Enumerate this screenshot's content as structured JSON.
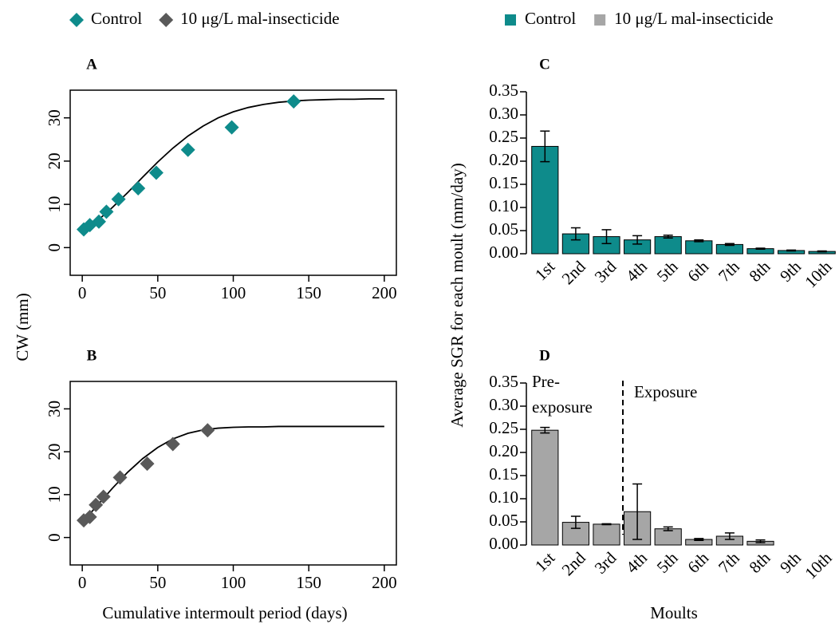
{
  "figure": {
    "left_y_label": "CW (mm)",
    "left_x_label": "Cumulative intermoult period (days)",
    "right_y_label": "Average SGR for each moult (mm/day)",
    "right_x_label": "Moults"
  },
  "chart_data": [
    {
      "type": "scatter",
      "title": "A",
      "marker": "diamond",
      "series": [
        {
          "name": "Control",
          "color": "#0e8b8b",
          "x": [
            1,
            5,
            11,
            16,
            24,
            37,
            49,
            70,
            99,
            140
          ],
          "values": [
            4.2,
            5.2,
            6.0,
            8.3,
            11.2,
            13.7,
            17.3,
            22.6,
            27.8,
            33.8
          ]
        }
      ],
      "fit": {
        "color": "#000000",
        "x": [
          0,
          10,
          20,
          30,
          40,
          50,
          60,
          70,
          80,
          90,
          100,
          110,
          120,
          130,
          140,
          150,
          160,
          170,
          180,
          190,
          200
        ],
        "values": [
          3.5,
          6.2,
          9.3,
          12.7,
          16.3,
          19.8,
          23.0,
          25.8,
          28.1,
          30.0,
          31.4,
          32.4,
          33.1,
          33.6,
          33.9,
          34.1,
          34.2,
          34.3,
          34.3,
          34.4,
          34.4
        ]
      },
      "xlim": [
        -8,
        208
      ],
      "ylim": [
        -6.4,
        36.4
      ],
      "xticks": [
        0,
        50,
        100,
        150,
        200
      ],
      "yticks": [
        0,
        10,
        20,
        30
      ]
    },
    {
      "type": "scatter",
      "title": "B",
      "marker": "diamond",
      "series": [
        {
          "name": "10 μg/L mal-insecticide",
          "color": "#595959",
          "x": [
            1,
            5,
            9,
            14,
            25,
            43,
            60,
            83
          ],
          "values": [
            4.0,
            4.8,
            7.6,
            9.5,
            14.0,
            17.2,
            21.8,
            25.0
          ]
        }
      ],
      "fit": {
        "color": "#000000",
        "x": [
          0,
          10,
          20,
          30,
          40,
          50,
          60,
          70,
          80,
          90,
          100,
          110,
          120,
          130,
          140,
          150,
          160,
          170,
          180,
          190,
          200
        ],
        "values": [
          3.5,
          7.5,
          11.5,
          15.2,
          18.4,
          21.0,
          23.0,
          24.3,
          25.1,
          25.5,
          25.7,
          25.8,
          25.8,
          25.9,
          25.9,
          25.9,
          25.9,
          25.9,
          25.9,
          25.9,
          25.9
        ]
      },
      "xlim": [
        -8,
        208
      ],
      "ylim": [
        -6.4,
        36.4
      ],
      "xticks": [
        0,
        50,
        100,
        150,
        200
      ],
      "yticks": [
        0,
        10,
        20,
        30
      ]
    },
    {
      "type": "bar",
      "title": "C",
      "categories": [
        "1st",
        "2nd",
        "3rd",
        "4th",
        "5th",
        "6th",
        "7th",
        "8th",
        "9th",
        "10th"
      ],
      "series": [
        {
          "name": "Control",
          "color": "#0e8b8b",
          "values": [
            0.232,
            0.043,
            0.037,
            0.03,
            0.037,
            0.028,
            0.02,
            0.011,
            0.007,
            0.005
          ],
          "errors": [
            0.033,
            0.013,
            0.015,
            0.009,
            0.003,
            0.002,
            0.002,
            0.001,
            0.001,
            0.001
          ]
        }
      ],
      "ylim": [
        0,
        0.35
      ],
      "yticks": [
        {
          "value": 0,
          "label": "0.00"
        },
        {
          "value": 0.05,
          "label": "0.05"
        },
        {
          "value": 0.1,
          "label": "0.10"
        },
        {
          "value": 0.15,
          "label": "0.15"
        },
        {
          "value": 0.2,
          "label": "0.20"
        },
        {
          "value": 0.25,
          "label": "0.25"
        },
        {
          "value": 0.3,
          "label": "0.30"
        },
        {
          "value": 0.35,
          "label": "0.35"
        }
      ]
    },
    {
      "type": "bar",
      "title": "D",
      "categories": [
        "1st",
        "2nd",
        "3rd",
        "4th",
        "5th",
        "6th",
        "7th",
        "8th",
        "9th",
        "10th"
      ],
      "series": [
        {
          "name": "10 μg/L mal-insecticide",
          "color": "#a6a6a6",
          "values": [
            0.248,
            0.049,
            0.045,
            0.072,
            0.035,
            0.012,
            0.019,
            0.008,
            0,
            0
          ],
          "errors": [
            0.006,
            0.013,
            0.001,
            0.06,
            0.004,
            0.002,
            0.007,
            0.003,
            0,
            0
          ]
        }
      ],
      "ylim": [
        0,
        0.35
      ],
      "yticks": [
        {
          "value": 0,
          "label": "0.00"
        },
        {
          "value": 0.05,
          "label": "0.05"
        },
        {
          "value": 0.1,
          "label": "0.10"
        },
        {
          "value": 0.15,
          "label": "0.15"
        },
        {
          "value": 0.2,
          "label": "0.20"
        },
        {
          "value": 0.25,
          "label": "0.25"
        },
        {
          "value": 0.3,
          "label": "0.30"
        },
        {
          "value": 0.35,
          "label": "0.35"
        }
      ],
      "annotations": [
        "Pre-",
        "exposure",
        "Exposure"
      ]
    }
  ]
}
